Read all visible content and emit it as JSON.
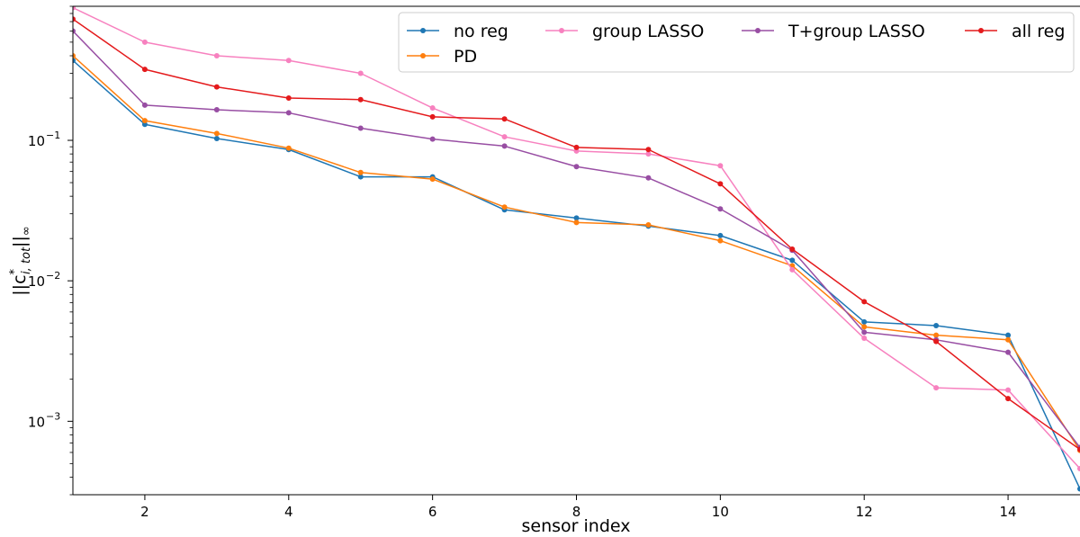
{
  "chart_data": {
    "type": "line",
    "xlabel": "sensor index",
    "ylabel": "||c*_{i,tot}||_∞",
    "ylabel_parts": {
      "pre": "||c",
      "sup": "*",
      "sub": "i, tot",
      "post": "||",
      "post_sub": "∞"
    },
    "yscale": "log",
    "xlim": [
      1,
      15
    ],
    "ylim": [
      0.0003,
      0.9
    ],
    "xticks": [
      2,
      4,
      6,
      8,
      10,
      12,
      14
    ],
    "yticks": [
      {
        "value": 0.001,
        "base": "10",
        "exp": "−3"
      },
      {
        "value": 0.01,
        "base": "10",
        "exp": "−2"
      },
      {
        "value": 0.1,
        "base": "10",
        "exp": "−1"
      }
    ],
    "grid": false,
    "legend_position": "top-right",
    "x": [
      1,
      2,
      3,
      4,
      5,
      6,
      7,
      8,
      9,
      10,
      11,
      12,
      13,
      14,
      15
    ],
    "series": [
      {
        "name": "no reg",
        "color": "#1f77b4",
        "values": [
          0.37,
          0.13,
          0.103,
          0.086,
          0.055,
          0.055,
          0.032,
          0.028,
          0.0245,
          0.021,
          0.014,
          0.0051,
          0.0048,
          0.0041,
          0.00033
        ]
      },
      {
        "name": "PD",
        "color": "#ff7f0e",
        "values": [
          0.4,
          0.138,
          0.112,
          0.088,
          0.059,
          0.053,
          0.0335,
          0.026,
          0.025,
          0.0193,
          0.0128,
          0.0047,
          0.0041,
          0.0038,
          0.00062
        ]
      },
      {
        "name": "group LASSO",
        "color": "#f781bf",
        "values": [
          0.88,
          0.5,
          0.4,
          0.37,
          0.3,
          0.17,
          0.106,
          0.084,
          0.08,
          0.066,
          0.012,
          0.0039,
          0.00173,
          0.00167,
          0.00046
        ]
      },
      {
        "name": "T+group LASSO",
        "color": "#984ea3",
        "values": [
          0.6,
          0.178,
          0.165,
          0.157,
          0.122,
          0.102,
          0.091,
          0.065,
          0.054,
          0.0325,
          0.0165,
          0.0043,
          0.0038,
          0.0031,
          0.00065
        ]
      },
      {
        "name": "all reg",
        "color": "#e41a1c",
        "values": [
          0.73,
          0.32,
          0.24,
          0.2,
          0.195,
          0.147,
          0.142,
          0.089,
          0.086,
          0.049,
          0.0168,
          0.0071,
          0.0037,
          0.00145,
          0.00063
        ]
      }
    ]
  }
}
